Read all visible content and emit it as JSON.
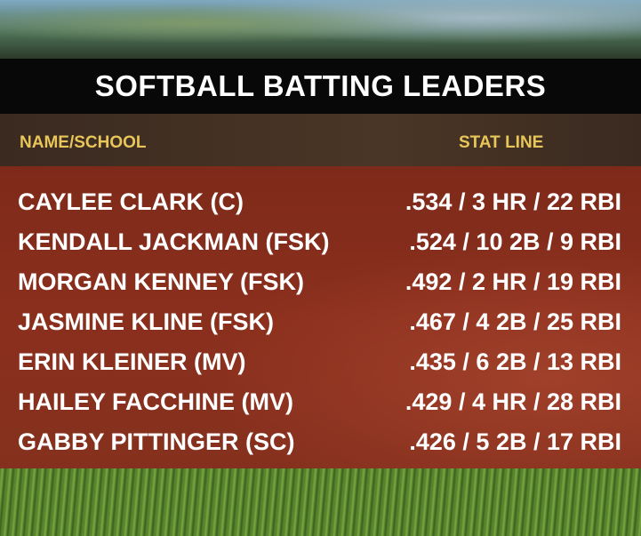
{
  "title": "SOFTBALL BATTING LEADERS",
  "headers": [
    "NAME/SCHOOL",
    "STAT LINE"
  ],
  "rows": [
    [
      "CAYLEE CLARK (C)",
      ".534 / 3 HR / 22 RBI"
    ],
    [
      "KENDALL JACKMAN (FSK)",
      ".524 / 10 2B / 9 RBI"
    ],
    [
      "MORGAN KENNEY (FSK)",
      ".492 / 2 HR / 19 RBI"
    ],
    [
      "JASMINE KLINE (FSK)",
      ".467 / 4 2B / 25 RBI"
    ],
    [
      "ERIN KLEINER (MV)",
      ".435 / 6 2B / 13 RBI"
    ],
    [
      "HAILEY FACCHINE (MV)",
      ".429 / 4 HR / 28 RBI"
    ],
    [
      "GABBY PITTINGER (SC)",
      ".426 / 5 2B / 17 RBI"
    ]
  ]
}
